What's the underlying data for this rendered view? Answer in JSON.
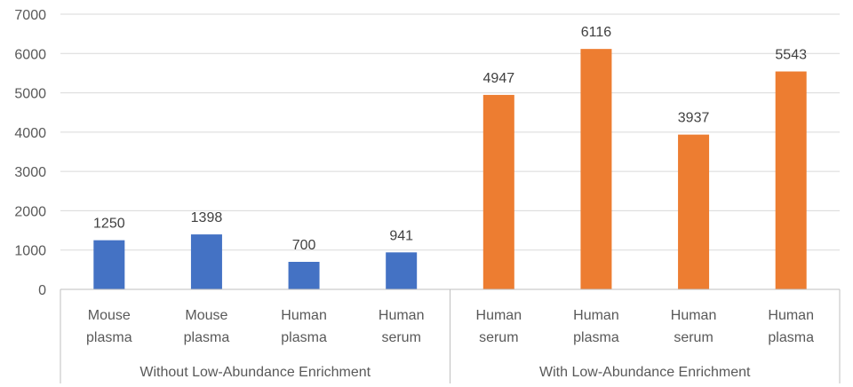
{
  "chart_data": {
    "type": "bar",
    "title": "",
    "xlabel": "",
    "ylabel": "",
    "ylim": [
      0,
      7000
    ],
    "yticks": [
      0,
      1000,
      2000,
      3000,
      4000,
      5000,
      6000,
      7000
    ],
    "grid": true,
    "legend": "none",
    "groups": [
      {
        "label": "Without Low-Abundance Enrichment",
        "color": "#4472C4",
        "bars": [
          {
            "category": [
              "Mouse",
              "plasma"
            ],
            "value": 1250
          },
          {
            "category": [
              "Mouse",
              "plasma"
            ],
            "value": 1398
          },
          {
            "category": [
              "Human",
              "plasma"
            ],
            "value": 700
          },
          {
            "category": [
              "Human",
              "serum"
            ],
            "value": 941
          }
        ]
      },
      {
        "label": "With Low-Abundance Enrichment",
        "color": "#ED7D31",
        "bars": [
          {
            "category": [
              "Human",
              "serum"
            ],
            "value": 4947
          },
          {
            "category": [
              "Human",
              "plasma"
            ],
            "value": 6116
          },
          {
            "category": [
              "Human",
              "serum"
            ],
            "value": 3937
          },
          {
            "category": [
              "Human",
              "plasma"
            ],
            "value": 5543
          }
        ]
      }
    ]
  }
}
